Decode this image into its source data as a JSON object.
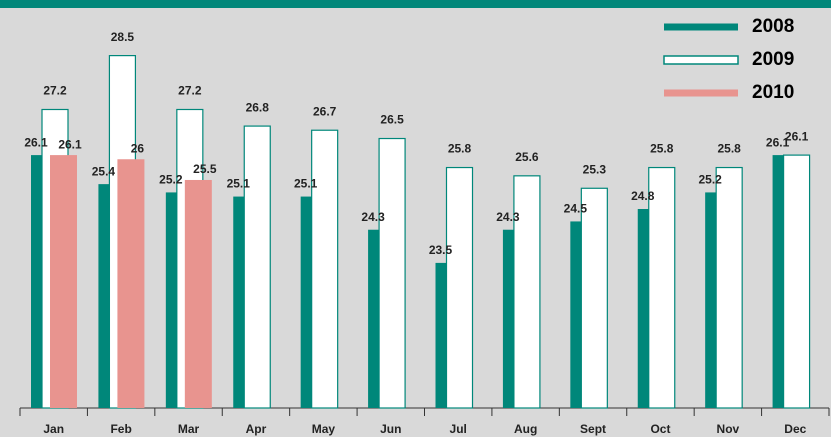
{
  "chart_data": {
    "type": "bar",
    "categories": [
      "Jan",
      "Feb",
      "Mar",
      "Apr",
      "May",
      "Jun",
      "Jul",
      "Aug",
      "Sept",
      "Oct",
      "Nov",
      "Dec"
    ],
    "series": [
      {
        "name": "2008",
        "color": "#00877a",
        "values": [
          26.1,
          25.4,
          25.2,
          25.1,
          25.1,
          24.3,
          23.5,
          24.3,
          24.5,
          24.8,
          25.2,
          26.1
        ]
      },
      {
        "name": "2009",
        "color": "#ffffff",
        "values": [
          27.2,
          28.5,
          27.2,
          26.8,
          26.7,
          26.5,
          25.8,
          25.6,
          25.3,
          25.8,
          25.8,
          26.1
        ]
      },
      {
        "name": "2010",
        "color": "#e8948f",
        "values": [
          26.1,
          26.0,
          25.5,
          null,
          null,
          null,
          null,
          null,
          null,
          null,
          null,
          null
        ]
      }
    ],
    "ylim": [
      20,
      29.6
    ],
    "legend": "top-right"
  }
}
